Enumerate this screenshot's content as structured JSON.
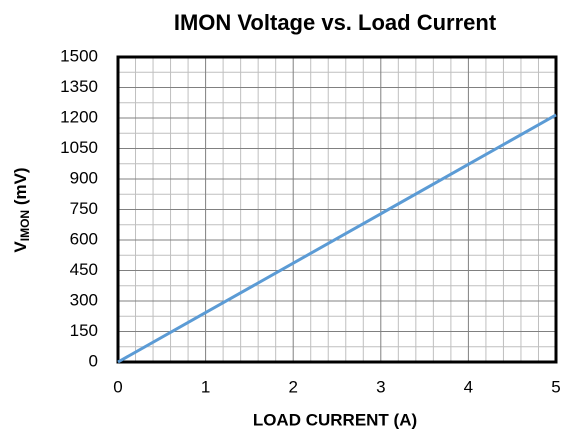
{
  "chart_data": {
    "type": "line",
    "title": "IMON Voltage vs. Load Current",
    "xlabel": "LOAD CURRENT (A)",
    "ylabel": {
      "base": "V",
      "subscript": "IMON",
      "rest": " (mV)"
    },
    "x": [
      0,
      1,
      2,
      3,
      4,
      5
    ],
    "series": [
      {
        "name": "IMON",
        "color": "#5b9bd5",
        "values": [
          0,
          243,
          486,
          729,
          972,
          1215
        ]
      }
    ],
    "xlim": [
      0,
      5
    ],
    "xticks": [
      0,
      1,
      2,
      3,
      4,
      5
    ],
    "ylim": [
      0,
      1500
    ],
    "yticks": [
      0,
      150,
      300,
      450,
      600,
      750,
      900,
      1050,
      1200,
      1350,
      1500
    ],
    "grid": true
  }
}
